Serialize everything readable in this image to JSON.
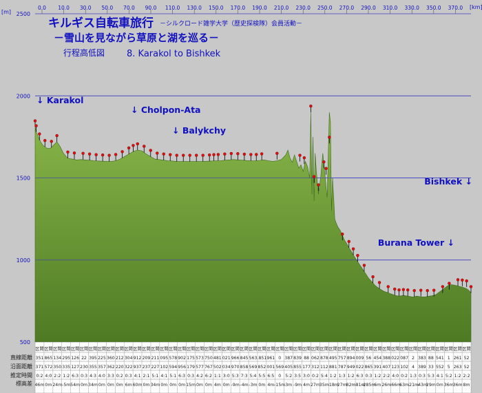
{
  "chart_data": {
    "type": "area",
    "title": "キルギス自転車旅行",
    "title_note": "－シルクロード雑学大学（歴史探検隊）会員活動－",
    "subtitle": "－雪山を見ながら草原と湖を巡る－",
    "caption": "行程高低図",
    "route": "8. Karakol to Bishkek",
    "x_unit": "[km]",
    "y_unit": "[m]",
    "xlim": [
      0,
      400
    ],
    "ylim": [
      500,
      2500
    ],
    "x_ticks": [
      "0.0",
      "10.0",
      "30.0",
      "50.0",
      "70.0",
      "90.0",
      "110.0",
      "130.0",
      "150.0",
      "170.0",
      "190.0",
      "210.0",
      "230.0",
      "250.0",
      "270.0",
      "290.0",
      "310.0",
      "330.0",
      "350.0",
      "370.0"
    ],
    "y_ticks": [
      "2500",
      "2000",
      "1500",
      "1000",
      "500"
    ],
    "grid": true,
    "fill_color": "#6e9a3c",
    "grid_color": "#4040c0",
    "title_color": "#1010c0",
    "profile": {
      "x": [
        0,
        1,
        3,
        5,
        7,
        9,
        11,
        14,
        17,
        20,
        23,
        26,
        30,
        34,
        38,
        42,
        46,
        50,
        54,
        58,
        62,
        66,
        70,
        74,
        78,
        82,
        86,
        90,
        94,
        98,
        102,
        106,
        110,
        114,
        118,
        122,
        126,
        130,
        134,
        138,
        142,
        146,
        150,
        154,
        158,
        162,
        166,
        170,
        174,
        178,
        182,
        186,
        190,
        194,
        198,
        202,
        206,
        210,
        214,
        218,
        222,
        226,
        230,
        232,
        234,
        236,
        238,
        240,
        242,
        244,
        246,
        248,
        250,
        252,
        253,
        254,
        255,
        256,
        257,
        258,
        260,
        262,
        264,
        266,
        268,
        270,
        271,
        272,
        273,
        274,
        275,
        276,
        278,
        280,
        282,
        284,
        286,
        288,
        290,
        292,
        294,
        296,
        298,
        300,
        302,
        304,
        306,
        308,
        310,
        312,
        314,
        316,
        318,
        320,
        322,
        324,
        326,
        328,
        330,
        332,
        334,
        336,
        338,
        340,
        342,
        344,
        346,
        348,
        350,
        352,
        354,
        356,
        358,
        360,
        362,
        364,
        366,
        368,
        370,
        372,
        374,
        376,
        378,
        380,
        382,
        384,
        386,
        388,
        390,
        392,
        394,
        396,
        398,
        400
      ],
      "y": [
        1810,
        1780,
        1750,
        1720,
        1700,
        1690,
        1680,
        1680,
        1700,
        1720,
        1690,
        1650,
        1620,
        1615,
        1610,
        1612,
        1610,
        1608,
        1605,
        1603,
        1602,
        1600,
        1600,
        1605,
        1615,
        1630,
        1645,
        1660,
        1670,
        1665,
        1645,
        1630,
        1615,
        1612,
        1608,
        1605,
        1603,
        1600,
        1600,
        1600,
        1600,
        1600,
        1600,
        1600,
        1602,
        1603,
        1605,
        1605,
        1608,
        1610,
        1612,
        1610,
        1608,
        1606,
        1605,
        1605,
        1607,
        1610,
        1605,
        1600,
        1605,
        1612,
        1640,
        1670,
        1620,
        1595,
        1640,
        1600,
        1560,
        1580,
        1540,
        1600,
        1570,
        1500,
        1900,
        1400,
        1750,
        1360,
        1650,
        1550,
        1400,
        1500,
        1650,
        1520,
        1380,
        1900,
        1840,
        1300,
        1500,
        1380,
        1250,
        1230,
        1200,
        1180,
        1150,
        1120,
        1100,
        1075,
        1055,
        1030,
        1010,
        990,
        970,
        950,
        930,
        910,
        890,
        875,
        860,
        845,
        835,
        825,
        818,
        810,
        805,
        800,
        795,
        790,
        785,
        782,
        780,
        782,
        785,
        782,
        780,
        778,
        775,
        776,
        780,
        778,
        776,
        775,
        775,
        778,
        780,
        782,
        785,
        790,
        800,
        810,
        820,
        830,
        840,
        848,
        850,
        848,
        845,
        842,
        838,
        835,
        830,
        825,
        815,
        800
      ]
    },
    "markers": [
      {
        "x": 0,
        "y": 1810
      },
      {
        "x": 1,
        "y": 1780
      },
      {
        "x": 4,
        "y": 1730
      },
      {
        "x": 9,
        "y": 1690
      },
      {
        "x": 15,
        "y": 1685
      },
      {
        "x": 20,
        "y": 1720
      },
      {
        "x": 30,
        "y": 1620
      },
      {
        "x": 36,
        "y": 1614
      },
      {
        "x": 44,
        "y": 1612
      },
      {
        "x": 50,
        "y": 1608
      },
      {
        "x": 56,
        "y": 1604
      },
      {
        "x": 62,
        "y": 1602
      },
      {
        "x": 68,
        "y": 1600
      },
      {
        "x": 74,
        "y": 1605
      },
      {
        "x": 80,
        "y": 1622
      },
      {
        "x": 86,
        "y": 1645
      },
      {
        "x": 90,
        "y": 1660
      },
      {
        "x": 94,
        "y": 1670
      },
      {
        "x": 100,
        "y": 1655
      },
      {
        "x": 106,
        "y": 1630
      },
      {
        "x": 112,
        "y": 1613
      },
      {
        "x": 118,
        "y": 1608
      },
      {
        "x": 124,
        "y": 1604
      },
      {
        "x": 130,
        "y": 1600
      },
      {
        "x": 136,
        "y": 1600
      },
      {
        "x": 142,
        "y": 1600
      },
      {
        "x": 148,
        "y": 1600
      },
      {
        "x": 154,
        "y": 1600
      },
      {
        "x": 160,
        "y": 1602
      },
      {
        "x": 164,
        "y": 1604
      },
      {
        "x": 168,
        "y": 1605
      },
      {
        "x": 174,
        "y": 1608
      },
      {
        "x": 180,
        "y": 1611
      },
      {
        "x": 186,
        "y": 1610
      },
      {
        "x": 192,
        "y": 1607
      },
      {
        "x": 198,
        "y": 1605
      },
      {
        "x": 203,
        "y": 1605
      },
      {
        "x": 208,
        "y": 1609
      },
      {
        "x": 222,
        "y": 1612
      },
      {
        "x": 243,
        "y": 1600
      },
      {
        "x": 247,
        "y": 1585
      },
      {
        "x": 253,
        "y": 1900
      },
      {
        "x": 256,
        "y": 1470
      },
      {
        "x": 260,
        "y": 1420
      },
      {
        "x": 265,
        "y": 1560
      },
      {
        "x": 267,
        "y": 1520
      },
      {
        "x": 270,
        "y": 1710
      },
      {
        "x": 282,
        "y": 1120
      },
      {
        "x": 288,
        "y": 1075
      },
      {
        "x": 292,
        "y": 1030
      },
      {
        "x": 296,
        "y": 990
      },
      {
        "x": 302,
        "y": 930
      },
      {
        "x": 310,
        "y": 860
      },
      {
        "x": 316,
        "y": 825
      },
      {
        "x": 324,
        "y": 800
      },
      {
        "x": 330,
        "y": 785
      },
      {
        "x": 334,
        "y": 780
      },
      {
        "x": 338,
        "y": 782
      },
      {
        "x": 342,
        "y": 780
      },
      {
        "x": 348,
        "y": 776
      },
      {
        "x": 354,
        "y": 778
      },
      {
        "x": 360,
        "y": 776
      },
      {
        "x": 366,
        "y": 778
      },
      {
        "x": 374,
        "y": 800
      },
      {
        "x": 380,
        "y": 820
      },
      {
        "x": 388,
        "y": 842
      },
      {
        "x": 392,
        "y": 840
      },
      {
        "x": 396,
        "y": 835
      },
      {
        "x": 400,
        "y": 800
      }
    ],
    "annotations": [
      {
        "label": "↓ Karakol",
        "x": 0,
        "y": 2000
      },
      {
        "label": "↓ Cholpon-Ata",
        "x": 90,
        "y": 1950
      },
      {
        "label": "↓ Balykchy",
        "x": 118,
        "y": 1830
      },
      {
        "label": "Bishkek ↓",
        "x": 400,
        "y": 1500
      },
      {
        "label": "Burana Tower ↓",
        "x": 350,
        "y": 1120
      }
    ]
  },
  "table": {
    "row_labels": [
      "直線距離",
      "沿面距離",
      "推定時間",
      "標高差"
    ],
    "row1": [
      "区間",
      "区間",
      "区間",
      "区間",
      "区間",
      "区間",
      "区間",
      "区間",
      "区間",
      "区間",
      "区間",
      "区間",
      "区間",
      "区間",
      "区間",
      "区間",
      "区間",
      "区間",
      "区間",
      "区間",
      "区間",
      "区間",
      "区間",
      "区間",
      "区間",
      "区間",
      "区間",
      "区間",
      "区間",
      "区間",
      "区間",
      "区間",
      "区間",
      "区間",
      "区間",
      "区間",
      "区間",
      "区間",
      "区間",
      "区間",
      "区間",
      "区間",
      "区間",
      "区間",
      "区間",
      "区間",
      "区間",
      "区間",
      "区間",
      "区間",
      "区間",
      "区間",
      "区間",
      "区間",
      "区間",
      "区間",
      "区間",
      "区間",
      "区間",
      "区間",
      "区間",
      "区間",
      "区間",
      "区間",
      "区間",
      "区間"
    ],
    "row2": [
      "351",
      "865",
      "134",
      "295",
      "126",
      "22",
      "395",
      "225",
      "360",
      "212",
      "304",
      "912",
      "209",
      "211",
      "095",
      "578",
      "902",
      "175",
      "573",
      "750",
      "481",
      "021",
      "966",
      "845",
      "563",
      ".851",
      "961",
      "0",
      "387",
      "839",
      "88",
      "062",
      "878",
      "495",
      "757",
      "894",
      "009",
      "56",
      "454",
      "388",
      "022",
      "087",
      "2",
      "383",
      "88",
      "541",
      "1",
      "261",
      "52"
    ],
    "row3": [
      "371",
      "572",
      "350",
      "335",
      "127",
      "230",
      "355",
      "357",
      "362",
      "220",
      "322",
      "937",
      "237",
      "227",
      "102",
      "594",
      "956",
      "179",
      "577",
      "767",
      "502",
      "034",
      "970",
      "858",
      "569",
      "852",
      "001",
      "569",
      "405",
      "855",
      "177",
      "312",
      "112",
      "881",
      "787",
      "949",
      "022",
      "865",
      "391",
      "407",
      "123",
      "102",
      "4",
      "389",
      "33",
      "552",
      "5",
      "263",
      "52"
    ],
    "row4": [
      "0:2",
      "4:0",
      "2:2",
      "1:2",
      "6:3",
      "0:3",
      "4:3",
      "4:0",
      "3:3",
      "0:2",
      "0:3",
      "4:1",
      "2:1",
      "5:1",
      "4:1",
      "5:1",
      "6:3",
      "0:3",
      "4:2",
      "6:2",
      "1:1",
      "3:0",
      "5:3",
      "7:3",
      "5:4",
      "5:5",
      "6:5",
      "0",
      "5:2",
      "3:5",
      "3:0",
      "0:2",
      "5:4",
      "1:2",
      "1:3",
      "1:2",
      "6:3",
      "0:3",
      "1:2",
      "2:2",
      "4:0",
      "0:2",
      "1:3",
      "0:3",
      "5:3",
      "4:1",
      "5:2",
      "1:2",
      "2:2"
    ],
    "row5": [
      "46m",
      "0m",
      "24m",
      "-5m",
      "54m",
      "0m",
      "34m",
      "0m",
      "0m",
      "0m",
      "6m",
      "60m",
      "0m",
      "34m",
      "0m",
      "0m",
      "0m",
      "15m",
      "0m",
      "0m",
      "4m",
      "0m",
      "-9m",
      "-4m",
      "-3m",
      "0m",
      "4m",
      "-15m",
      "3m",
      "-9m",
      "4m",
      "27m",
      "35m",
      "-18m",
      "27m",
      "82m",
      "-81m",
      "-285m",
      "6m",
      "26m",
      "-66m",
      "63m",
      "-21m",
      "-43m",
      "29m",
      "0m",
      "36m",
      "36m",
      "8m"
    ]
  }
}
